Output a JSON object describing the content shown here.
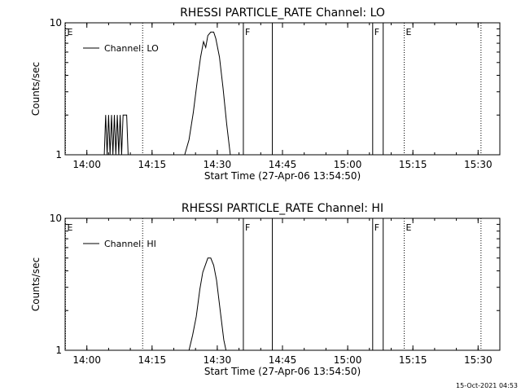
{
  "footer": {
    "timestamp": "15-Oct-2021 04:53"
  },
  "chart_data": [
    {
      "type": "line",
      "title": "RHESSI PARTICLE_RATE Channel: LO",
      "xlabel": "Start Time (27-Apr-06 13:54:50)",
      "ylabel": "Counts/sec",
      "yscale": "log",
      "ylim": [
        1,
        10
      ],
      "y_ticks": [
        {
          "value": 1,
          "label": "1"
        },
        {
          "value": 10,
          "label": "10"
        }
      ],
      "xlim": [
        "13:55:00",
        "15:35:00"
      ],
      "x_ticks": [
        {
          "time": "14:00",
          "label": "14:00"
        },
        {
          "time": "14:15",
          "label": "14:15"
        },
        {
          "time": "14:30",
          "label": "14:30"
        },
        {
          "time": "14:45",
          "label": "14:45"
        },
        {
          "time": "15:00",
          "label": "15:00"
        },
        {
          "time": "15:15",
          "label": "15:15"
        },
        {
          "time": "15:30",
          "label": "15:30"
        }
      ],
      "legend": {
        "position": "top-left",
        "entries": [
          "Channel: LO"
        ]
      },
      "series": [
        {
          "name": "Channel: LO",
          "points": [
            [
              "14:04:00",
              1
            ],
            [
              "14:04:20",
              2
            ],
            [
              "14:04:40",
              1
            ],
            [
              "14:05:00",
              2
            ],
            [
              "14:05:20",
              1
            ],
            [
              "14:05:40",
              2
            ],
            [
              "14:06:00",
              1
            ],
            [
              "14:06:20",
              2
            ],
            [
              "14:06:40",
              1
            ],
            [
              "14:07:00",
              2
            ],
            [
              "14:07:20",
              1
            ],
            [
              "14:07:40",
              2
            ],
            [
              "14:08:00",
              1
            ],
            [
              "14:08:20",
              2
            ],
            [
              "14:09:10",
              2
            ],
            [
              "14:09:30",
              1
            ],
            [
              "14:22:30",
              1
            ],
            [
              "14:23:30",
              1.3
            ],
            [
              "14:24:30",
              2.1
            ],
            [
              "14:25:20",
              3.5
            ],
            [
              "14:26:10",
              5.5
            ],
            [
              "14:26:50",
              7.2
            ],
            [
              "14:27:20",
              6.5
            ],
            [
              "14:27:50",
              8.0
            ],
            [
              "14:28:30",
              8.5
            ],
            [
              "14:29:10",
              8.5
            ],
            [
              "14:29:40",
              7.6
            ],
            [
              "14:30:30",
              5.5
            ],
            [
              "14:31:20",
              3.2
            ],
            [
              "14:32:10",
              1.7
            ],
            [
              "14:33:00",
              1
            ]
          ]
        }
      ],
      "markers": [
        {
          "time": "13:55:05",
          "label": "E",
          "style": "dotted"
        },
        {
          "time": "14:12:50",
          "label": "",
          "style": "dotted"
        },
        {
          "time": "14:36:00",
          "label": "F",
          "style": "solid"
        },
        {
          "time": "14:42:40",
          "label": "",
          "style": "solid"
        },
        {
          "time": "15:05:45",
          "label": "F",
          "style": "solid"
        },
        {
          "time": "15:08:10",
          "label": "",
          "style": "solid"
        },
        {
          "time": "15:13:00",
          "label": "E",
          "style": "dotted"
        },
        {
          "time": "15:30:40",
          "label": "",
          "style": "dotted"
        }
      ]
    },
    {
      "type": "line",
      "title": "RHESSI PARTICLE_RATE Channel: HI",
      "xlabel": "Start Time (27-Apr-06 13:54:50)",
      "ylabel": "Counts/sec",
      "yscale": "log",
      "ylim": [
        1,
        10
      ],
      "y_ticks": [
        {
          "value": 1,
          "label": "1"
        },
        {
          "value": 10,
          "label": "10"
        }
      ],
      "xlim": [
        "13:55:00",
        "15:35:00"
      ],
      "x_ticks": [
        {
          "time": "14:00",
          "label": "14:00"
        },
        {
          "time": "14:15",
          "label": "14:15"
        },
        {
          "time": "14:30",
          "label": "14:30"
        },
        {
          "time": "14:45",
          "label": "14:45"
        },
        {
          "time": "15:00",
          "label": "15:00"
        },
        {
          "time": "15:15",
          "label": "15:15"
        },
        {
          "time": "15:30",
          "label": "15:30"
        }
      ],
      "legend": {
        "position": "top-left",
        "entries": [
          "Channel: HI"
        ]
      },
      "series": [
        {
          "name": "Channel: HI",
          "points": [
            [
              "14:23:30",
              1
            ],
            [
              "14:24:20",
              1.3
            ],
            [
              "14:25:10",
              1.8
            ],
            [
              "14:26:00",
              2.9
            ],
            [
              "14:26:40",
              3.9
            ],
            [
              "14:27:20",
              4.5
            ],
            [
              "14:27:50",
              5.0
            ],
            [
              "14:28:30",
              5.0
            ],
            [
              "14:29:10",
              4.4
            ],
            [
              "14:29:50",
              3.4
            ],
            [
              "14:30:40",
              2.0
            ],
            [
              "14:31:30",
              1.2
            ],
            [
              "14:32:00",
              1
            ]
          ]
        }
      ],
      "markers": [
        {
          "time": "13:55:05",
          "label": "E",
          "style": "dotted"
        },
        {
          "time": "14:12:50",
          "label": "",
          "style": "dotted"
        },
        {
          "time": "14:36:00",
          "label": "F",
          "style": "solid"
        },
        {
          "time": "14:42:40",
          "label": "",
          "style": "solid"
        },
        {
          "time": "15:05:45",
          "label": "F",
          "style": "solid"
        },
        {
          "time": "15:08:10",
          "label": "",
          "style": "solid"
        },
        {
          "time": "15:13:00",
          "label": "E",
          "style": "dotted"
        },
        {
          "time": "15:30:40",
          "label": "",
          "style": "dotted"
        }
      ]
    }
  ]
}
